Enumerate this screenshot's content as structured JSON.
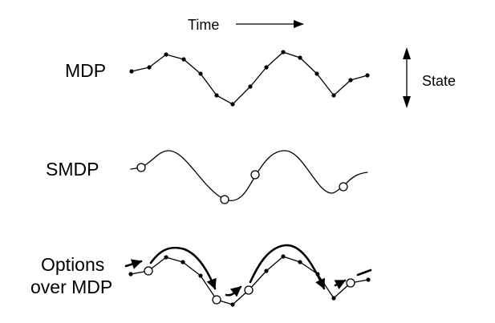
{
  "labels": {
    "time": "Time",
    "state": "State",
    "mdp": "MDP",
    "smdp": "SMDP",
    "options_line1": "Options",
    "options_line2": "over MDP"
  },
  "colors": {
    "ink": "#000000",
    "background": "#ffffff"
  }
}
